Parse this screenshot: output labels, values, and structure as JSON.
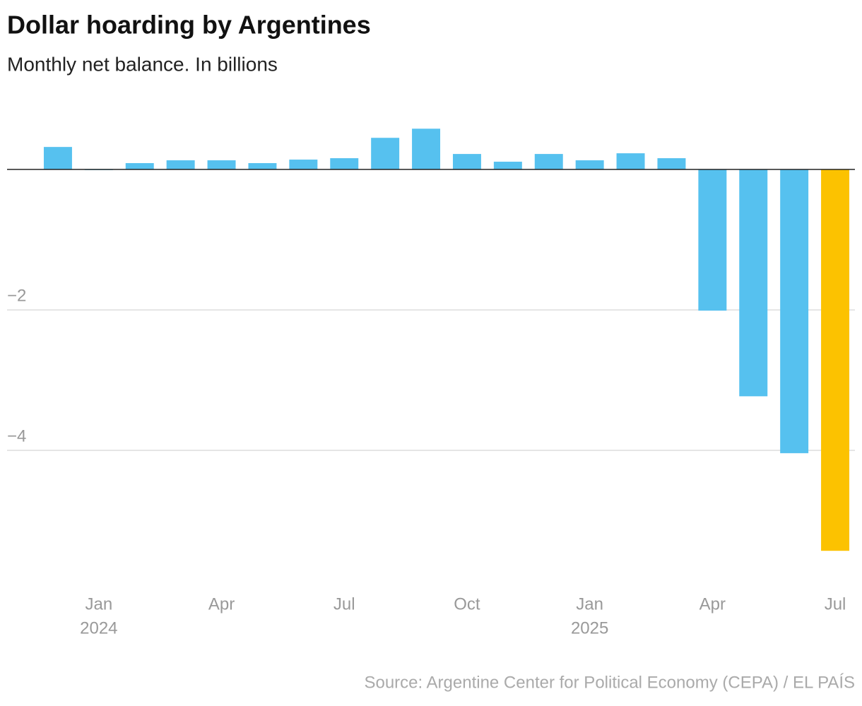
{
  "chart_data": {
    "type": "bar",
    "title": "Dollar hoarding by Argentines",
    "subtitle": "Monthly net balance. In billions",
    "source": "Source: Argentine Center for Political Economy (CEPA) / EL PAÍS",
    "categories": [
      null,
      "Jan",
      null,
      null,
      "Apr",
      null,
      null,
      "Jul",
      null,
      null,
      "Oct",
      null,
      null,
      "Jan",
      null,
      null,
      "Apr",
      null,
      null,
      "Jul"
    ],
    "years": [
      null,
      "2024",
      null,
      null,
      null,
      null,
      null,
      null,
      null,
      null,
      null,
      null,
      null,
      "2025",
      null,
      null,
      null,
      null,
      null,
      null
    ],
    "values": [
      0.32,
      -0.01,
      0.09,
      0.13,
      0.13,
      0.09,
      0.14,
      0.16,
      0.45,
      0.58,
      0.22,
      0.11,
      0.22,
      0.13,
      0.23,
      0.16,
      -2.01,
      -3.23,
      -4.04,
      -5.43
    ],
    "colors": [
      "#56c1ef",
      "#56c1ef",
      "#56c1ef",
      "#56c1ef",
      "#56c1ef",
      "#56c1ef",
      "#56c1ef",
      "#56c1ef",
      "#56c1ef",
      "#56c1ef",
      "#56c1ef",
      "#56c1ef",
      "#56c1ef",
      "#56c1ef",
      "#56c1ef",
      "#56c1ef",
      "#56c1ef",
      "#56c1ef",
      "#56c1ef",
      "#fcc200"
    ],
    "ylim": [
      -5.8,
      0.8
    ],
    "yticks": [
      {
        "value": -4,
        "label": "−4"
      },
      {
        "value": -2,
        "label": "−2"
      }
    ],
    "grid": true
  }
}
